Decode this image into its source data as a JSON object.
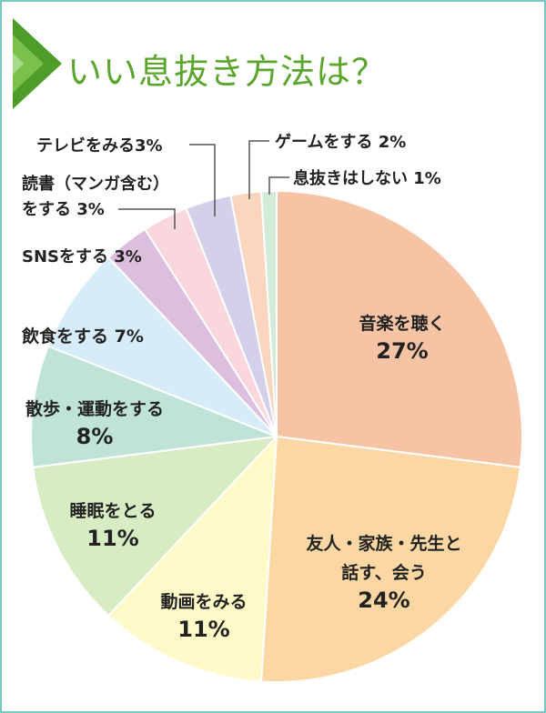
{
  "header": {
    "title": "いい息抜き方法は？",
    "accent_color": "#5aa52d",
    "icon": "green-chevron-arrow-icon"
  },
  "chart_data": {
    "type": "pie",
    "title": "いい息抜き方法は？",
    "start_angle_deg": 0,
    "direction": "clockwise",
    "slices": [
      {
        "label": "音楽を聴く",
        "value": 27,
        "value_text": "27%",
        "color": "#f6c4a5"
      },
      {
        "label": "友人・家族・先生と話す、会う",
        "value": 24,
        "value_text": "24%",
        "color": "#fad7a3"
      },
      {
        "label": "動画をみる",
        "value": 11,
        "value_text": "11%",
        "color": "#fffac8"
      },
      {
        "label": "睡眠をとる",
        "value": 11,
        "value_text": "11%",
        "color": "#d8ecc4"
      },
      {
        "label": "散歩・運動をする",
        "value": 8,
        "value_text": "8%",
        "color": "#bfe3d8"
      },
      {
        "label": "飲食をする",
        "value": 7,
        "value_text": "7%",
        "color": "#d6ecf8"
      },
      {
        "label": "SNSをする",
        "value": 3,
        "value_text": "3%",
        "color": "#dcbede"
      },
      {
        "label": "読書（マンガ含む）をする",
        "value": 3,
        "value_text": "3%",
        "color": "#fad7dd"
      },
      {
        "label": "テレビをみる",
        "value": 3,
        "value_text": "3%",
        "color": "#d4d0ea"
      },
      {
        "label": "ゲームをする",
        "value": 2,
        "value_text": "2%",
        "color": "#fad6bf"
      },
      {
        "label": "息抜きはしない",
        "value": 1,
        "value_text": "1%",
        "color": "#d2ebd8"
      }
    ]
  }
}
